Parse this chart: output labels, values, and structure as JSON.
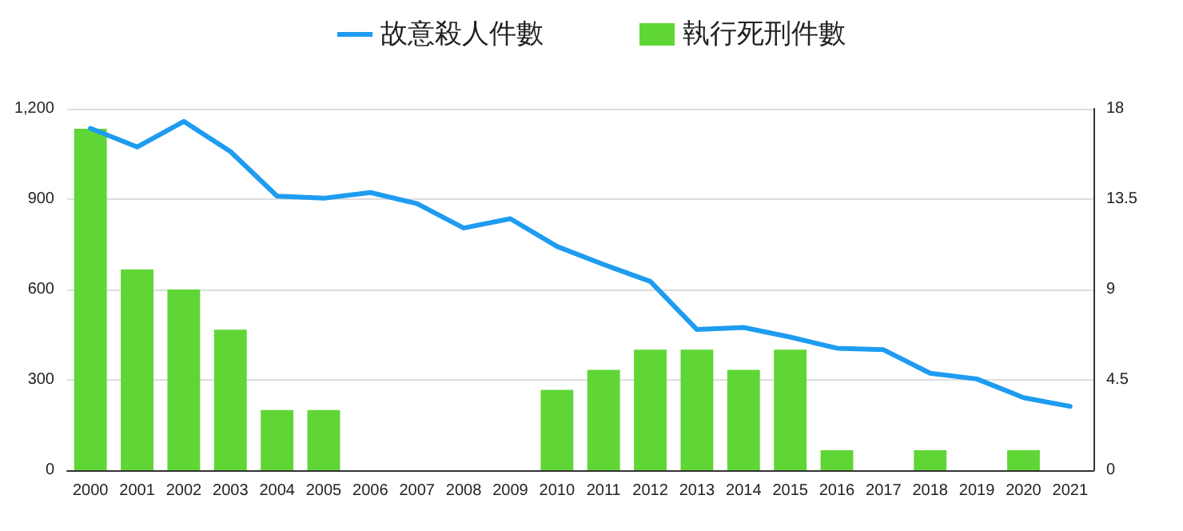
{
  "chart_data": {
    "type": "bar",
    "categories": [
      "2000",
      "2001",
      "2002",
      "2003",
      "2004",
      "2005",
      "2006",
      "2007",
      "2008",
      "2009",
      "2010",
      "2011",
      "2012",
      "2013",
      "2014",
      "2015",
      "2016",
      "2017",
      "2018",
      "2019",
      "2020",
      "2021"
    ],
    "series": [
      {
        "name": "故意殺人件數",
        "type": "line",
        "color": "#1e9cf0",
        "values": [
          1135,
          1073,
          1158,
          1058,
          910,
          903,
          922,
          885,
          804,
          835,
          743,
          683,
          627,
          467,
          474,
          442,
          405,
          400,
          322,
          303,
          241,
          212
        ]
      },
      {
        "name": "執行死刑件數",
        "axis": "y2",
        "color": "#5fd635",
        "values": [
          17,
          10,
          9,
          7,
          3,
          3,
          0,
          0,
          0,
          0,
          4,
          5,
          6,
          6,
          5,
          6,
          1,
          0,
          1,
          0,
          1,
          0
        ]
      }
    ],
    "ylim": [
      0,
      1200
    ],
    "yticks": [
      {
        "value": 0,
        "label": "0"
      },
      {
        "value": 300,
        "label": "300"
      },
      {
        "value": 600,
        "label": "600"
      },
      {
        "value": 900,
        "label": "900"
      },
      {
        "value": 1200,
        "label": "1,200"
      }
    ],
    "y2lim": [
      0,
      18
    ],
    "y2ticks": [
      0,
      4.5,
      9,
      13.5,
      18
    ],
    "grid": "y",
    "legend": "top",
    "marker": "none",
    "line_style": "solid"
  }
}
